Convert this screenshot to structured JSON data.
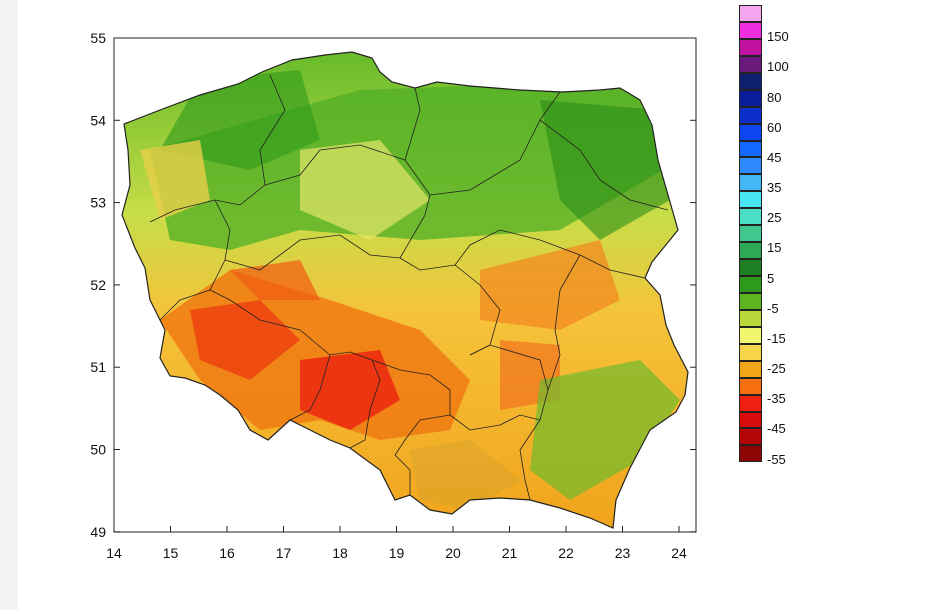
{
  "map": {
    "axes": {
      "x_ticks": [
        "14",
        "15",
        "16",
        "17",
        "18",
        "19",
        "20",
        "21",
        "22",
        "23",
        "24"
      ],
      "y_ticks": [
        "55",
        "54",
        "53",
        "52",
        "51",
        "50",
        "49"
      ]
    }
  },
  "legend": {
    "colors": [
      "#f4a7ee",
      "#ee2ee0",
      "#c0129f",
      "#6a1a7a",
      "#0d1f6e",
      "#0a1d9a",
      "#0b2fc8",
      "#0c46f0",
      "#1468ff",
      "#2d8bff",
      "#43b7f5",
      "#48e6f2",
      "#49dfc5",
      "#42c88f",
      "#2fa855",
      "#1f7f23",
      "#2e9a1c",
      "#5db520",
      "#b9d93a",
      "#f2f56e",
      "#f7d54a",
      "#f1a617",
      "#f56f0f",
      "#f02010",
      "#d80a0a",
      "#b40606",
      "#8d0404"
    ],
    "labels": [
      "150",
      "100",
      "80",
      "60",
      "45",
      "35",
      "25",
      "15",
      "5",
      "-5",
      "-15",
      "-25",
      "-35",
      "-45",
      "-55"
    ]
  }
}
